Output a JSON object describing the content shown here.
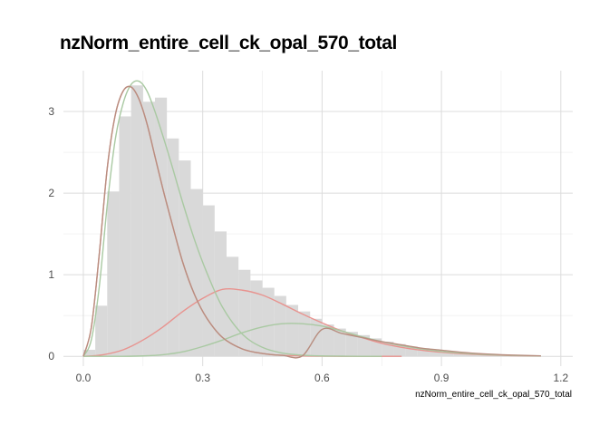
{
  "chart_data": {
    "type": "histogram",
    "title": "nzNorm_entire_cell_ck_opal_570_total",
    "xlabel": "nzNorm_entire_cell_ck_opal_570_total",
    "ylabel": "",
    "xlim": [
      -0.05,
      1.23
    ],
    "ylim": [
      -0.12,
      3.5
    ],
    "x_ticks": [
      0.0,
      0.3,
      0.6,
      0.9,
      1.2
    ],
    "x_tick_labels": [
      "0.0",
      "0.3",
      "0.6",
      "0.9",
      "1.2"
    ],
    "y_ticks": [
      0,
      1,
      2,
      3
    ],
    "y_tick_labels": [
      "0",
      "1",
      "2",
      "3"
    ],
    "grid": true,
    "legend": "none",
    "histogram": {
      "bin_width": 0.03,
      "bin_start": 0.0,
      "values": [
        0.08,
        0.62,
        2.02,
        2.94,
        3.32,
        3.12,
        3.17,
        2.67,
        2.4,
        2.05,
        1.85,
        1.53,
        1.22,
        1.06,
        0.93,
        0.84,
        0.74,
        0.63,
        0.55,
        0.46,
        0.39,
        0.34,
        0.3,
        0.26,
        0.22,
        0.18,
        0.15,
        0.12,
        0.1,
        0.08,
        0.06,
        0.04,
        0.03,
        0.02,
        0.015,
        0.01,
        0.008,
        0.005
      ],
      "color": "#d9d9d9"
    },
    "series": [
      {
        "color": "#e8938f",
        "x": [
          0.0,
          0.02,
          0.04,
          0.06,
          0.08,
          0.1,
          0.12,
          0.14,
          0.16,
          0.18,
          0.2,
          0.22,
          0.25,
          0.28,
          0.31,
          0.35,
          0.4,
          0.45,
          0.5,
          0.55,
          0.6,
          0.65,
          0.7,
          0.75,
          0.8
        ],
        "values": [
          0.0,
          0.35,
          1.25,
          2.3,
          2.95,
          3.25,
          3.3,
          3.15,
          2.85,
          2.45,
          2.05,
          1.68,
          1.15,
          0.75,
          0.47,
          0.23,
          0.09,
          0.035,
          0.012,
          0.004,
          0.0015,
          0.0,
          0.0,
          0.0,
          0.0
        ]
      },
      {
        "color": "#e8938f",
        "x": [
          0.0,
          0.05,
          0.1,
          0.15,
          0.2,
          0.25,
          0.3,
          0.35,
          0.4,
          0.45,
          0.5,
          0.55,
          0.6,
          0.65,
          0.7,
          0.75,
          0.8,
          0.85,
          0.9,
          0.95,
          1.0,
          1.05,
          1.1,
          1.15
        ],
        "values": [
          0.0,
          0.02,
          0.08,
          0.2,
          0.36,
          0.55,
          0.71,
          0.82,
          0.81,
          0.75,
          0.64,
          0.52,
          0.41,
          0.31,
          0.23,
          0.16,
          0.11,
          0.075,
          0.05,
          0.032,
          0.02,
          0.012,
          0.007,
          0.004
        ]
      },
      {
        "color": "#a9c9a2",
        "x": [
          0.0,
          0.02,
          0.04,
          0.06,
          0.08,
          0.1,
          0.12,
          0.14,
          0.16,
          0.18,
          0.2,
          0.22,
          0.25,
          0.28,
          0.31,
          0.35,
          0.4,
          0.45,
          0.5,
          0.55,
          0.6,
          0.65,
          0.7,
          0.75
        ],
        "values": [
          0.0,
          0.2,
          0.85,
          1.85,
          2.65,
          3.1,
          3.33,
          3.37,
          3.25,
          3.0,
          2.7,
          2.38,
          1.88,
          1.42,
          1.03,
          0.6,
          0.27,
          0.11,
          0.04,
          0.014,
          0.005,
          0.002,
          0.0,
          0.0
        ]
      },
      {
        "color": "#a9c9a2",
        "x": [
          0.0,
          0.1,
          0.15,
          0.2,
          0.25,
          0.3,
          0.35,
          0.4,
          0.45,
          0.5,
          0.55,
          0.6,
          0.65,
          0.7,
          0.75,
          0.8,
          0.85,
          0.9,
          0.95,
          1.0,
          1.05,
          1.1,
          1.15
        ],
        "values": [
          0.0,
          0.0,
          0.005,
          0.02,
          0.055,
          0.12,
          0.2,
          0.29,
          0.36,
          0.4,
          0.4,
          0.37,
          0.31,
          0.24,
          0.18,
          0.13,
          0.09,
          0.06,
          0.04,
          0.025,
          0.015,
          0.009,
          0.005
        ]
      },
      {
        "color": "#b88e80",
        "x": [
          0.0,
          0.02,
          0.04,
          0.06,
          0.08,
          0.1,
          0.12,
          0.14,
          0.16,
          0.18,
          0.2,
          0.22,
          0.25,
          0.28,
          0.31,
          0.35,
          0.4,
          0.45,
          0.5,
          0.55,
          0.6,
          0.65,
          0.7,
          0.75,
          0.8,
          0.85,
          0.9,
          0.95,
          1.0,
          1.05,
          1.1,
          1.15
        ],
        "values": [
          0.0,
          0.35,
          1.25,
          2.3,
          2.95,
          3.25,
          3.3,
          3.15,
          2.85,
          2.45,
          2.05,
          1.68,
          1.15,
          0.75,
          0.47,
          0.23,
          0.09,
          0.035,
          0.012,
          0.004,
          0.0015,
          0.0,
          0.0,
          0.0,
          0.0,
          0.0,
          0.0,
          0.0,
          0.0,
          0.0,
          0.0,
          0.0
        ],
        "tail_x": [
          0.6,
          0.65,
          0.7,
          0.75,
          0.8,
          0.85,
          0.9,
          0.95,
          1.0,
          1.05,
          1.1,
          1.15
        ],
        "tail_values": [
          0.33,
          0.28,
          0.23,
          0.18,
          0.14,
          0.1,
          0.075,
          0.05,
          0.032,
          0.02,
          0.012,
          0.006
        ]
      }
    ]
  }
}
